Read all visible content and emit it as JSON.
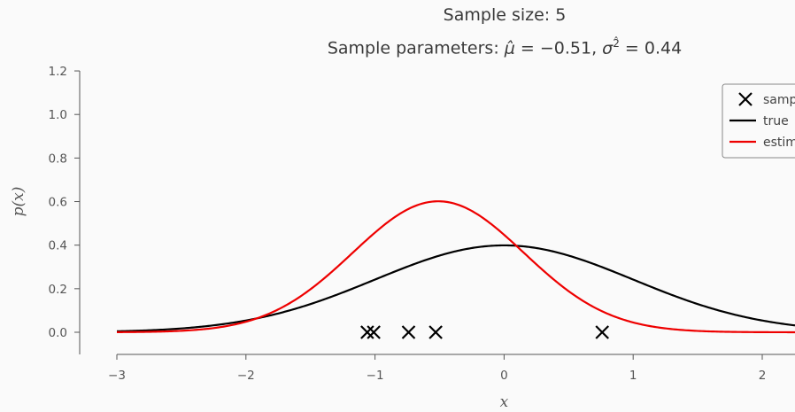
{
  "chart_data": {
    "type": "line",
    "title": "Sample size: 5",
    "subtitle": "Sample parameters: μ̂ = −0.51, σ̂² = 0.44",
    "subtitle_parts": {
      "prefix": "Sample parameters: ",
      "mu_symbol": "μ̂",
      "mu_value": " = −0.51, ",
      "sigma_symbol": "σ",
      "sigma_superscript": "2̂",
      "sigma_value": " = 0.44"
    },
    "xlabel": "x",
    "ylabel": "p(x)",
    "xlim": [
      -3.3,
      2.25
    ],
    "ylim": [
      -0.1,
      1.2
    ],
    "xticks": [
      -3,
      -2,
      -1,
      0,
      1,
      2
    ],
    "xtick_labels": [
      "−3",
      "−2",
      "−1",
      "0",
      "1",
      "2"
    ],
    "yticks": [
      0.0,
      0.2,
      0.4,
      0.6,
      0.8,
      1.0,
      1.2
    ],
    "ytick_labels": [
      "0.0",
      "0.2",
      "0.4",
      "0.6",
      "0.8",
      "1.0",
      "1.2"
    ],
    "grid": false,
    "legend_position": "top-right",
    "series": [
      {
        "name": "samples",
        "kind": "scatter",
        "marker": "x",
        "color": "#000000",
        "x": [
          -1.06,
          -1.01,
          -0.74,
          -0.53,
          0.76
        ],
        "y": [
          0,
          0,
          0,
          0,
          0
        ]
      },
      {
        "name": "true",
        "kind": "pdf",
        "mu": 0,
        "sigma2": 1,
        "color": "#000000"
      },
      {
        "name": "estimated",
        "kind": "pdf",
        "mu": -0.51,
        "sigma2": 0.44,
        "color": "#ee0000"
      }
    ]
  }
}
